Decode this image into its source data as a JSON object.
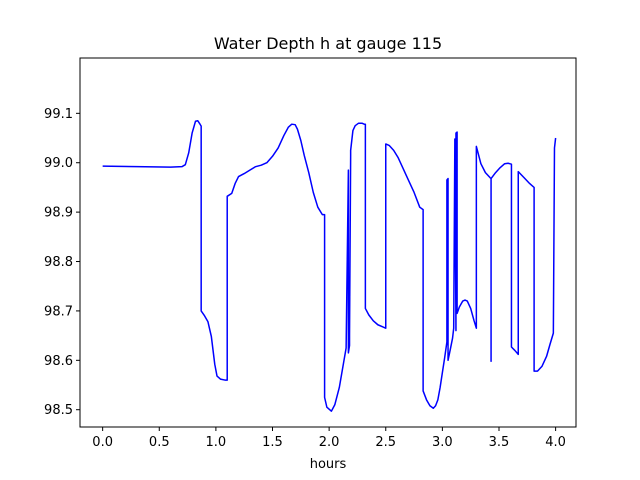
{
  "chart_data": {
    "type": "line",
    "title": "Water Depth h at gauge 115",
    "xlabel": "hours",
    "ylabel": "",
    "xlim": [
      -0.2,
      4.18
    ],
    "ylim": [
      98.465,
      99.212
    ],
    "xticks": [
      0.0,
      0.5,
      1.0,
      1.5,
      2.0,
      2.5,
      3.0,
      3.5,
      4.0
    ],
    "xtick_labels": [
      "0.0",
      "0.5",
      "1.0",
      "1.5",
      "2.0",
      "2.5",
      "3.0",
      "3.5",
      "4.0"
    ],
    "yticks": [
      98.5,
      98.6,
      98.7,
      98.8,
      98.9,
      99.0,
      99.1
    ],
    "ytick_labels": [
      "98.5",
      "98.6",
      "98.7",
      "98.8",
      "98.9",
      "99.0",
      "99.1"
    ],
    "grid": false,
    "series": [
      {
        "color": "#0000ff",
        "x": [
          0.0,
          0.3,
          0.6,
          0.7,
          0.73,
          0.76,
          0.79,
          0.82,
          0.84,
          0.86,
          0.87,
          0.87,
          0.9,
          0.93,
          0.96,
          0.99,
          1.01,
          1.04,
          1.08,
          1.1,
          1.1,
          1.14,
          1.17,
          1.2,
          1.25,
          1.3,
          1.35,
          1.4,
          1.45,
          1.5,
          1.55,
          1.6,
          1.64,
          1.67,
          1.7,
          1.72,
          1.75,
          1.78,
          1.82,
          1.86,
          1.9,
          1.94,
          1.96,
          1.96,
          1.98,
          2.02,
          2.05,
          2.09,
          2.12,
          2.15,
          2.17,
          2.17,
          2.18,
          2.18,
          2.19,
          2.19,
          2.2,
          2.21,
          2.23,
          2.26,
          2.29,
          2.31,
          2.32,
          2.32,
          2.35,
          2.39,
          2.43,
          2.47,
          2.5,
          2.5,
          2.53,
          2.57,
          2.61,
          2.65,
          2.7,
          2.75,
          2.8,
          2.83,
          2.83,
          2.86,
          2.89,
          2.92,
          2.94,
          2.96,
          2.98,
          3.0,
          3.02,
          3.04,
          3.04,
          3.05,
          3.05,
          3.07,
          3.09,
          3.1,
          3.11,
          3.11,
          3.12,
          3.12,
          3.13,
          3.13,
          3.15,
          3.18,
          3.2,
          3.22,
          3.25,
          3.28,
          3.3,
          3.3,
          3.34,
          3.38,
          3.42,
          3.43,
          3.43,
          3.43,
          3.47,
          3.51,
          3.55,
          3.58,
          3.61,
          3.61,
          3.64,
          3.67,
          3.67,
          3.72,
          3.77,
          3.81,
          3.81,
          3.84,
          3.88,
          3.92,
          3.95,
          3.98,
          3.99,
          4.0
        ],
        "values": [
          98.993,
          98.992,
          98.991,
          98.992,
          98.996,
          99.02,
          99.06,
          99.084,
          99.085,
          99.078,
          99.074,
          98.7,
          98.69,
          98.678,
          98.648,
          98.592,
          98.568,
          98.562,
          98.56,
          98.56,
          98.932,
          98.938,
          98.958,
          98.972,
          98.978,
          98.985,
          98.992,
          98.995,
          99.0,
          99.013,
          99.03,
          99.055,
          99.072,
          99.078,
          99.077,
          99.068,
          99.045,
          99.015,
          98.98,
          98.94,
          98.91,
          98.895,
          98.895,
          98.525,
          98.505,
          98.497,
          98.51,
          98.545,
          98.585,
          98.625,
          98.985,
          98.615,
          98.63,
          98.65,
          99.015,
          99.025,
          99.045,
          99.065,
          99.075,
          99.08,
          99.08,
          99.078,
          99.078,
          98.705,
          98.692,
          98.68,
          98.672,
          98.668,
          98.665,
          99.038,
          99.035,
          99.025,
          99.01,
          98.99,
          98.965,
          98.94,
          98.91,
          98.905,
          98.538,
          98.52,
          98.508,
          98.503,
          98.508,
          98.52,
          98.545,
          98.575,
          98.605,
          98.637,
          98.965,
          98.968,
          98.6,
          98.622,
          98.645,
          98.665,
          99.04,
          99.048,
          98.66,
          99.06,
          99.062,
          98.695,
          98.708,
          98.72,
          98.722,
          98.72,
          98.705,
          98.68,
          98.665,
          99.033,
          98.998,
          98.98,
          98.97,
          98.968,
          98.598,
          98.968,
          98.98,
          98.99,
          98.998,
          98.999,
          98.997,
          98.627,
          98.62,
          98.612,
          98.982,
          98.97,
          98.958,
          98.95,
          98.578,
          98.578,
          98.588,
          98.608,
          98.632,
          98.655,
          99.03,
          99.05
        ]
      }
    ]
  }
}
